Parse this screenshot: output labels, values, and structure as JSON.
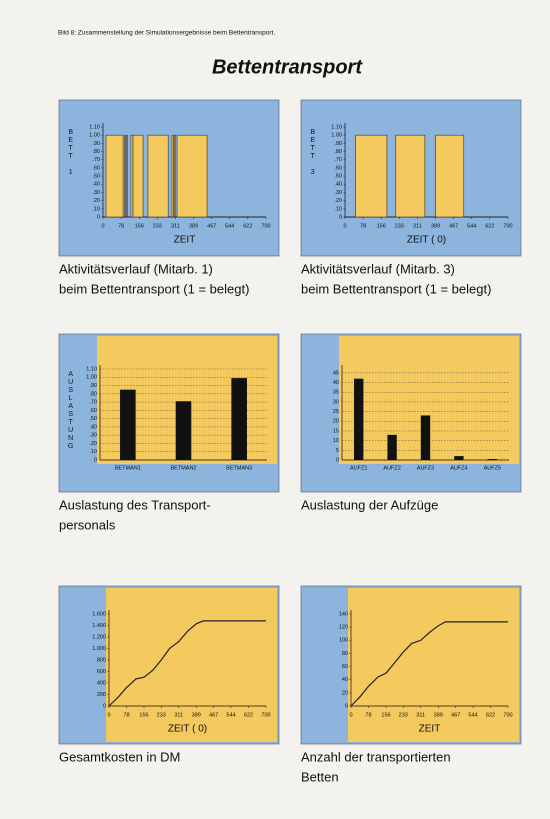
{
  "header": "Bild 8: Zusammenstellung der Simulationsergebnisse beim Bettentransport.",
  "title": "Bettentransport",
  "chart_data": [
    {
      "type": "step",
      "caption": [
        "Aktivitätsverlauf (Mitarb. 1)",
        "beim Bettentransport (1 = belegt)"
      ],
      "ylabel": "BETT 1",
      "xlabel": "ZEIT",
      "panel_color": "#8db4dc",
      "color": "#f4c95d",
      "x": [
        0,
        13,
        86,
        92,
        96,
        102,
        106,
        120,
        129,
        172,
        193,
        280,
        296,
        302,
        306,
        312,
        318,
        447,
        700
      ],
      "values": [
        0,
        1,
        0,
        1,
        0,
        1,
        0,
        1,
        1,
        0,
        1,
        0,
        1,
        0,
        1,
        0,
        1,
        0,
        0
      ],
      "xlim": [
        0,
        700
      ],
      "xticks": [
        0,
        78,
        156,
        233,
        311,
        389,
        467,
        544,
        622,
        700
      ],
      "ylim": [
        0,
        1.1
      ],
      "yticks": [
        0,
        {
          "value": 0.1,
          "label": ".10"
        },
        {
          "value": 0.2,
          "label": ".20"
        },
        {
          "value": 0.3,
          "label": ".30"
        },
        {
          "value": 0.4,
          "label": ".40"
        },
        {
          "value": 0.5,
          "label": ".50"
        },
        {
          "value": 0.6,
          "label": ".60"
        },
        {
          "value": 0.7,
          "label": ".70"
        },
        {
          "value": 0.8,
          "label": ".80"
        },
        {
          "value": 0.9,
          "label": ".90"
        },
        {
          "value": 1,
          "label": "1.00"
        },
        {
          "value": 1.1,
          "label": "1.10"
        }
      ]
    },
    {
      "type": "step",
      "caption": [
        "Aktivitätsverlauf (Mitarb. 3)",
        "beim Bettentransport (1 = belegt)"
      ],
      "ylabel": "BETT 3",
      "xlabel": "ZEIT ( 0)",
      "panel_color": "#8db4dc",
      "color": "#f4c95d",
      "x": [
        0,
        46,
        180,
        218,
        343,
        389,
        510,
        700
      ],
      "values": [
        0,
        1,
        0,
        1,
        0,
        1,
        0,
        0
      ],
      "xlim": [
        0,
        700
      ],
      "xticks": [
        0,
        78,
        156,
        233,
        311,
        389,
        467,
        544,
        622,
        700
      ],
      "ylim": [
        0,
        1.1
      ],
      "yticks": [
        0,
        {
          "value": 0.1,
          "label": ".10"
        },
        {
          "value": 0.2,
          "label": ".20"
        },
        {
          "value": 0.3,
          "label": ".30"
        },
        {
          "value": 0.4,
          "label": ".40"
        },
        {
          "value": 0.5,
          "label": ".50"
        },
        {
          "value": 0.6,
          "label": ".60"
        },
        {
          "value": 0.7,
          "label": ".70"
        },
        {
          "value": 0.8,
          "label": ".80"
        },
        {
          "value": 0.9,
          "label": ".90"
        },
        {
          "value": 1,
          "label": "1.00"
        },
        {
          "value": 1.1,
          "label": "1.10"
        }
      ]
    },
    {
      "type": "bar",
      "caption": [
        "Auslastung des Transport-",
        "personals"
      ],
      "ylabel": "AUSLASTUNG",
      "panel_color": "#8db4dc",
      "plot_color": "#f4c95d",
      "color": "#111111",
      "grid": true,
      "categories": [
        "BETMAN1",
        "BETMAN2",
        "BETMAN3"
      ],
      "values": [
        0.85,
        0.71,
        0.99
      ],
      "ylim": [
        0,
        1.1
      ],
      "yticks": [
        0,
        {
          "value": 0.1,
          "label": ".10"
        },
        {
          "value": 0.2,
          "label": ".20"
        },
        {
          "value": 0.3,
          "label": ".30"
        },
        {
          "value": 0.4,
          "label": ".40"
        },
        {
          "value": 0.5,
          "label": ".50"
        },
        {
          "value": 0.6,
          "label": ".60"
        },
        {
          "value": 0.7,
          "label": ".70"
        },
        {
          "value": 0.8,
          "label": ".80"
        },
        {
          "value": 0.9,
          "label": ".90"
        },
        {
          "value": 1,
          "label": "1.00"
        },
        {
          "value": 1.1,
          "label": "1.10"
        }
      ]
    },
    {
      "type": "bar",
      "caption": [
        "Auslastung der Aufzüge"
      ],
      "panel_color": "#8db4dc",
      "plot_color": "#f4c95d",
      "color": "#111111",
      "grid": true,
      "categories": [
        "AUFZ1",
        "AUFZ2",
        "AUFZ3",
        "AUFZ4",
        "AUFZ5"
      ],
      "values": [
        42,
        13,
        23,
        2,
        0.5
      ],
      "ylim": [
        0,
        47
      ],
      "yticks": [
        0,
        5,
        10,
        15,
        20,
        25,
        30,
        35,
        40,
        45
      ]
    },
    {
      "type": "line",
      "caption": [
        "Gesamtkosten in DM"
      ],
      "xlabel": "ZEIT ( 0)",
      "panel_color": "#8db4dc",
      "plot_color": "#f4c95d",
      "color": "#222222",
      "x": [
        0,
        40,
        78,
        120,
        156,
        195,
        233,
        270,
        311,
        350,
        389,
        420,
        467,
        544,
        622,
        700
      ],
      "values": [
        0,
        150,
        320,
        470,
        500,
        620,
        800,
        1000,
        1120,
        1300,
        1430,
        1480,
        1480,
        1480,
        1480,
        1480
      ],
      "xlim": [
        0,
        700
      ],
      "xticks": [
        0,
        78,
        156,
        233,
        311,
        389,
        467,
        544,
        622,
        700
      ],
      "ylim": [
        0,
        1600
      ],
      "yticks": [
        0,
        200,
        400,
        600,
        800,
        {
          "value": 1000,
          "label": "1.000"
        },
        {
          "value": 1200,
          "label": "1.200"
        },
        {
          "value": 1400,
          "label": "1.400"
        },
        {
          "value": 1600,
          "label": "1.600"
        }
      ]
    },
    {
      "type": "line",
      "caption": [
        "Anzahl der transportierten",
        "Betten"
      ],
      "xlabel": "ZEIT",
      "panel_color": "#8db4dc",
      "plot_color": "#f4c95d",
      "color": "#222222",
      "x": [
        0,
        40,
        78,
        120,
        156,
        195,
        233,
        270,
        311,
        350,
        389,
        420,
        467,
        544,
        622,
        700
      ],
      "values": [
        0,
        14,
        30,
        44,
        50,
        66,
        82,
        95,
        100,
        112,
        122,
        128,
        128,
        128,
        128,
        128
      ],
      "xlim": [
        0,
        700
      ],
      "xticks": [
        0,
        78,
        156,
        233,
        311,
        389,
        467,
        544,
        622,
        700
      ],
      "ylim": [
        0,
        140
      ],
      "yticks": [
        0,
        20,
        40,
        60,
        80,
        100,
        120,
        140
      ]
    }
  ]
}
